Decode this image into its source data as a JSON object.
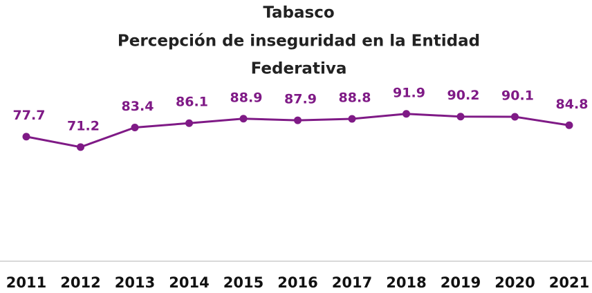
{
  "chart_data": {
    "type": "line",
    "title": "Tabasco",
    "subtitle": [
      "Percepción de inseguridad en la Entidad",
      "Federativa"
    ],
    "categories": [
      "2011",
      "2012",
      "2013",
      "2014",
      "2015",
      "2016",
      "2017",
      "2018",
      "2019",
      "2020",
      "2021"
    ],
    "values": [
      77.7,
      71.2,
      83.4,
      86.1,
      88.9,
      87.9,
      88.8,
      91.9,
      90.2,
      90.1,
      84.8
    ],
    "color": "#7f1a86",
    "ylim": [
      0,
      100
    ]
  }
}
